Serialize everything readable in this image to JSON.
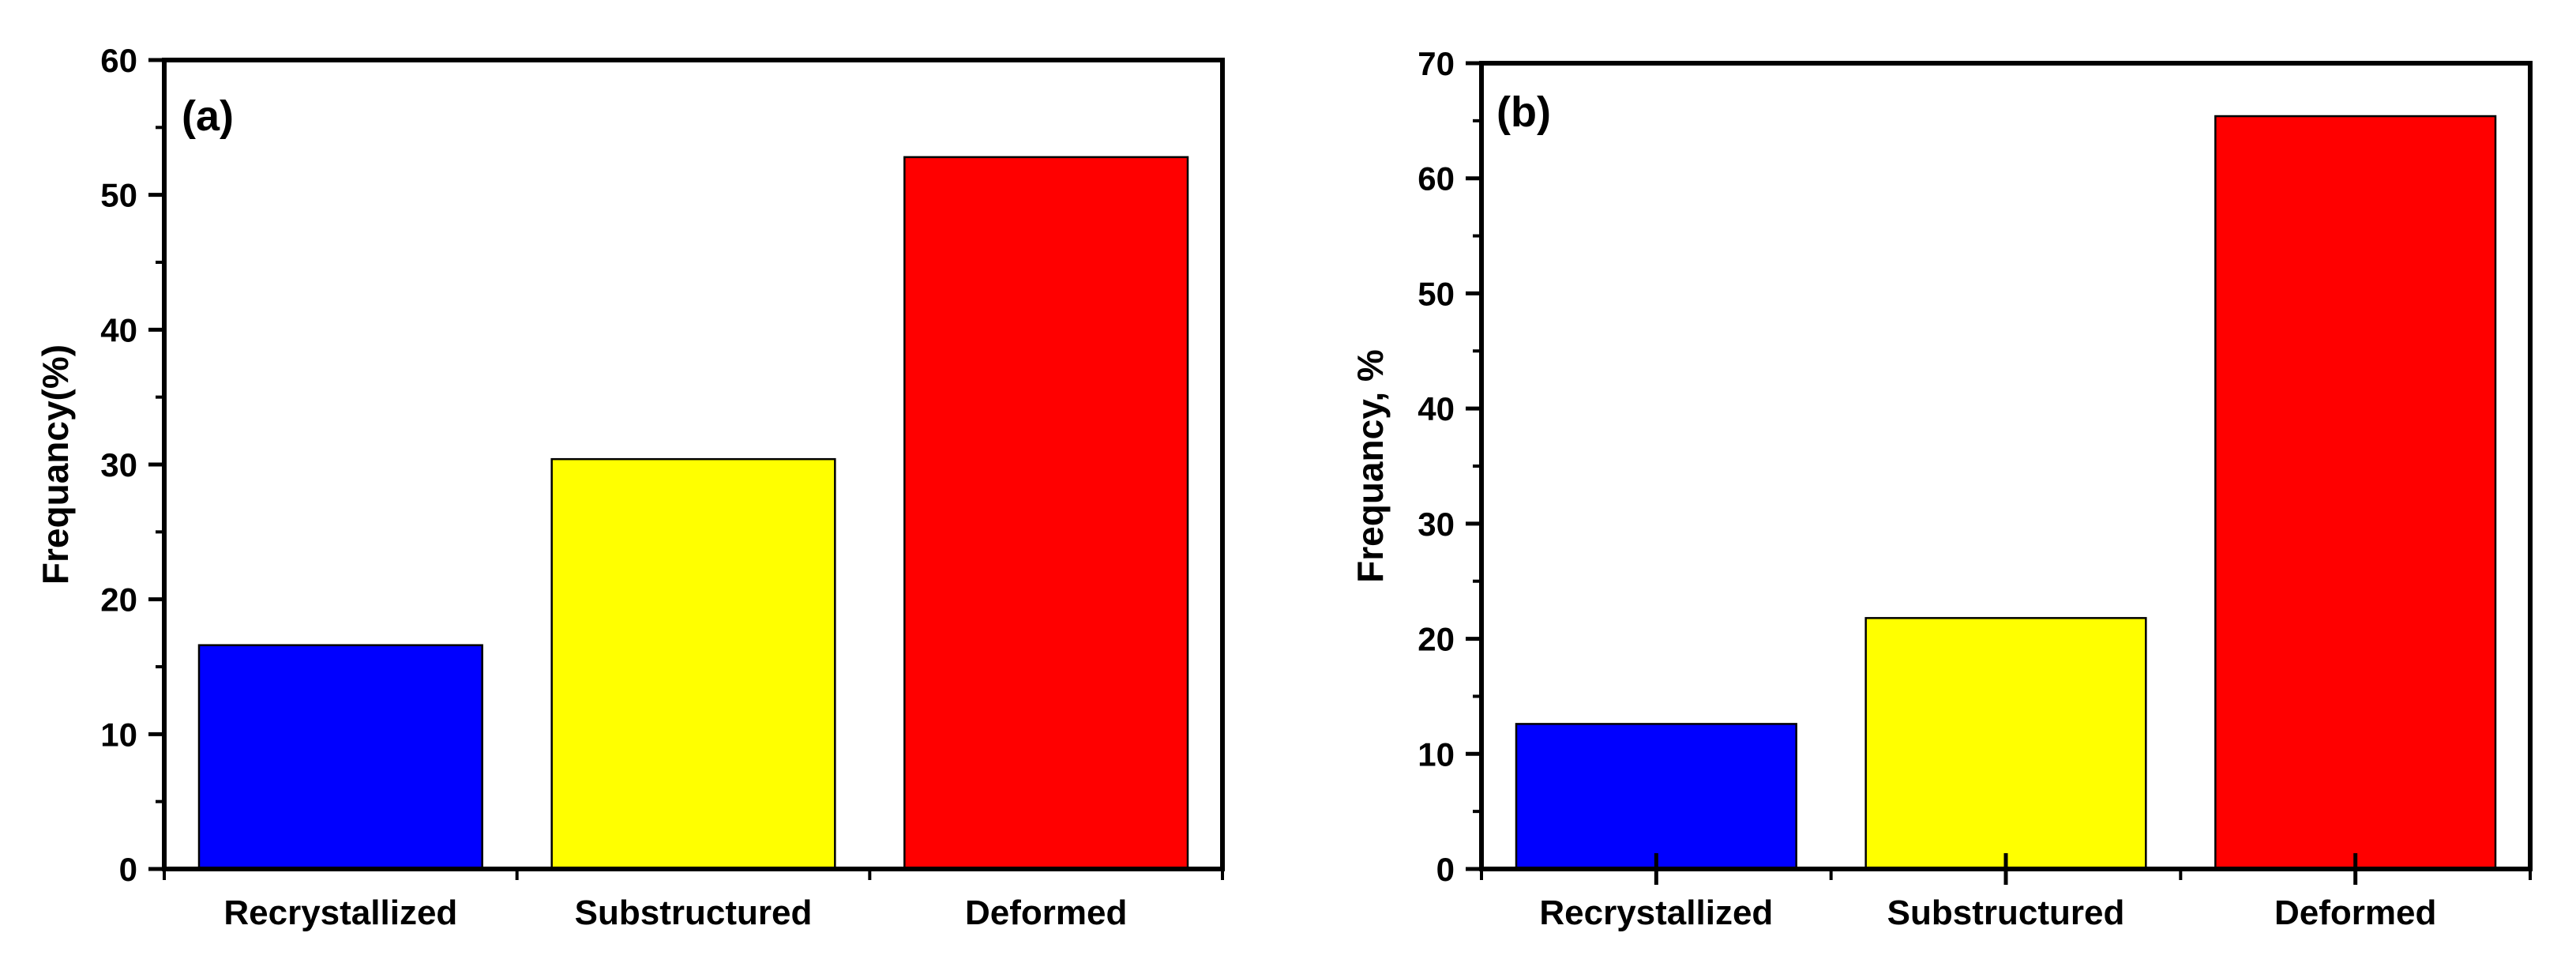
{
  "chart_data": [
    {
      "type": "bar",
      "panel_label": "(a)",
      "categories": [
        "Recrystallized",
        "Substructured",
        "Deformed"
      ],
      "values": [
        16.6,
        30.4,
        52.8
      ],
      "colors": [
        "#0000ff",
        "#ffff00",
        "#ff0000"
      ],
      "xlabel": "",
      "ylabel": "Frequancy(%)",
      "ylim": [
        0,
        60
      ],
      "yticks": [
        0,
        10,
        20,
        30,
        40,
        50,
        60
      ],
      "grid": false,
      "legend": "none"
    },
    {
      "type": "bar",
      "panel_label": "(b)",
      "categories": [
        "Recrystallized",
        "Substructured",
        "Deformed"
      ],
      "values": [
        12.6,
        21.8,
        65.4
      ],
      "colors": [
        "#0000ff",
        "#ffff00",
        "#ff0000"
      ],
      "xlabel": "",
      "ylabel": "Frequancy, %",
      "ylim": [
        0,
        70
      ],
      "yticks": [
        0,
        10,
        20,
        30,
        40,
        50,
        60,
        70
      ],
      "grid": false,
      "legend": "none"
    }
  ]
}
